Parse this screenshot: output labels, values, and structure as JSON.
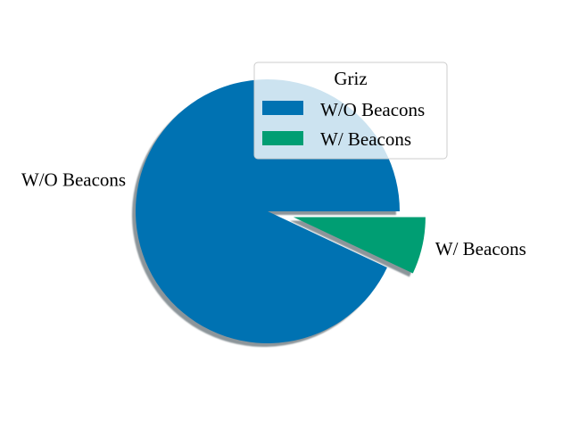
{
  "chart_data": {
    "type": "pie",
    "categories": [
      "W/O Beacons",
      "W/ Beacons"
    ],
    "values": [
      93,
      7
    ],
    "explode": [
      0,
      0.2
    ],
    "shadow": true,
    "start_angle_deg": 0,
    "colors": [
      "#0072b2",
      "#009e73"
    ],
    "legend": {
      "title": "Griz",
      "entries": [
        "W/O Beacons",
        "W/ Beacons"
      ],
      "placement": "upper-right"
    }
  }
}
